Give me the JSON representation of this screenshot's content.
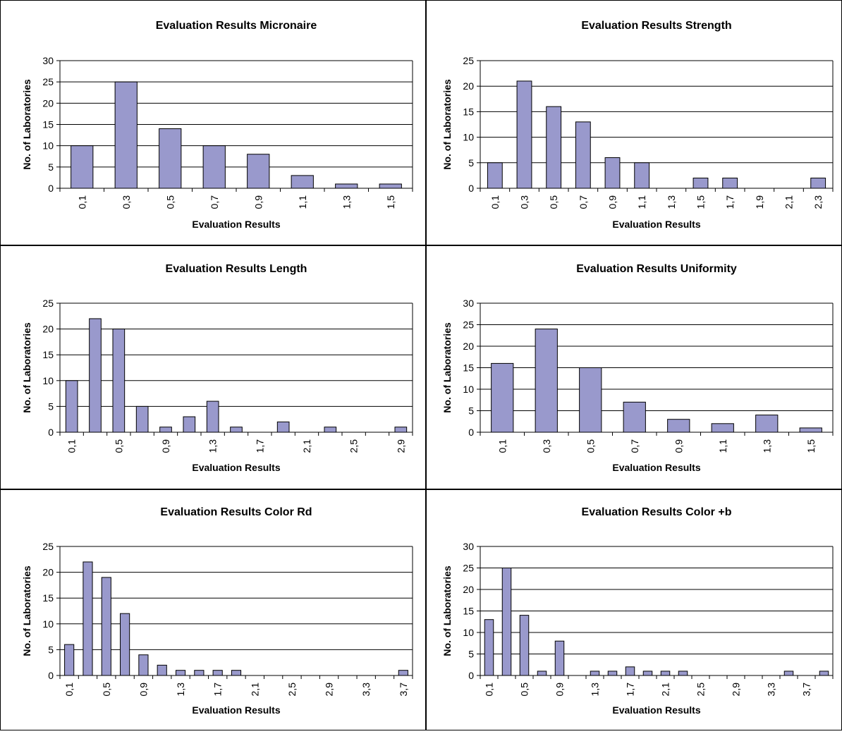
{
  "chart_data": [
    {
      "type": "bar",
      "title": "Evaluation Results Micronaire",
      "xlabel": "Evaluation Results",
      "ylabel": "No. of Laboratories",
      "ylim": [
        0,
        30
      ],
      "yticks": [
        0,
        5,
        10,
        15,
        20,
        25,
        30
      ],
      "grid": true,
      "categories": [
        "0,1",
        "0,3",
        "0,5",
        "0,7",
        "0,9",
        "1,1",
        "1,3",
        "1,5"
      ],
      "values": [
        10,
        25,
        14,
        10,
        8,
        3,
        1,
        1
      ],
      "label_every": 1,
      "colors": {
        "bar": "#9999cc"
      }
    },
    {
      "type": "bar",
      "title": "Evaluation Results Strength",
      "xlabel": "Evaluation Results",
      "ylabel": "No. of Laboratories",
      "ylim": [
        0,
        25
      ],
      "yticks": [
        0,
        5,
        10,
        15,
        20,
        25
      ],
      "grid": true,
      "categories": [
        "0,1",
        "0,3",
        "0,5",
        "0,7",
        "0,9",
        "1,1",
        "1,3",
        "1,5",
        "1,7",
        "1,9",
        "2,1",
        "2,3"
      ],
      "values": [
        5,
        21,
        16,
        13,
        6,
        5,
        0,
        2,
        2,
        0,
        0,
        2
      ],
      "label_every": 1,
      "colors": {
        "bar": "#9999cc"
      }
    },
    {
      "type": "bar",
      "title": "Evaluation Results Length",
      "xlabel": "Evaluation Results",
      "ylabel": "No. of Laboratories",
      "ylim": [
        0,
        25
      ],
      "yticks": [
        0,
        5,
        10,
        15,
        20,
        25
      ],
      "grid": true,
      "categories": [
        "0,1",
        "0,3",
        "0,5",
        "0,7",
        "0,9",
        "1,1",
        "1,3",
        "1,5",
        "1,7",
        "1,9",
        "2,1",
        "2,3",
        "2,5",
        "2,7",
        "2,9"
      ],
      "values": [
        10,
        22,
        20,
        5,
        1,
        3,
        6,
        1,
        0,
        2,
        0,
        1,
        0,
        0,
        1
      ],
      "label_every": 2,
      "colors": {
        "bar": "#9999cc"
      }
    },
    {
      "type": "bar",
      "title": "Evaluation Results Uniformity",
      "xlabel": "Evaluation Results",
      "ylabel": "No. of Laboratories",
      "ylim": [
        0,
        30
      ],
      "yticks": [
        0,
        5,
        10,
        15,
        20,
        25,
        30
      ],
      "grid": true,
      "categories": [
        "0,1",
        "0,3",
        "0,5",
        "0,7",
        "0,9",
        "1,1",
        "1,3",
        "1,5"
      ],
      "values": [
        16,
        24,
        15,
        7,
        3,
        2,
        4,
        1
      ],
      "label_every": 1,
      "colors": {
        "bar": "#9999cc"
      }
    },
    {
      "type": "bar",
      "title": "Evaluation Results Color Rd",
      "xlabel": "Evaluation Results",
      "ylabel": "No. of Laboratories",
      "ylim": [
        0,
        25
      ],
      "yticks": [
        0,
        5,
        10,
        15,
        20,
        25
      ],
      "grid": true,
      "categories": [
        "0,1",
        "0,3",
        "0,5",
        "0,7",
        "0,9",
        "1,1",
        "1,3",
        "1,5",
        "1,7",
        "1,9",
        "2,1",
        "2,3",
        "2,5",
        "2,7",
        "2,9",
        "3,1",
        "3,3",
        "3,5",
        "3,7"
      ],
      "values": [
        6,
        22,
        19,
        12,
        4,
        2,
        1,
        1,
        1,
        1,
        0,
        0,
        0,
        0,
        0,
        0,
        0,
        0,
        1
      ],
      "label_every": 2,
      "colors": {
        "bar": "#9999cc"
      }
    },
    {
      "type": "bar",
      "title": "Evaluation Results Color +b",
      "xlabel": "Evaluation Results",
      "ylabel": "No. of Laboratories",
      "ylim": [
        0,
        30
      ],
      "yticks": [
        0,
        5,
        10,
        15,
        20,
        25,
        30
      ],
      "grid": true,
      "categories": [
        "0,1",
        "0,3",
        "0,5",
        "0,7",
        "0,9",
        "1,1",
        "1,3",
        "1,5",
        "1,7",
        "1,9",
        "2,1",
        "2,3",
        "2,5",
        "2,7",
        "2,9",
        "3,1",
        "3,3",
        "3,5",
        "3,7",
        "3,9"
      ],
      "values": [
        13,
        25,
        14,
        1,
        8,
        0,
        1,
        1,
        2,
        1,
        1,
        1,
        0,
        0,
        0,
        0,
        0,
        1,
        0,
        1
      ],
      "label_every": 2,
      "colors": {
        "bar": "#9999cc"
      }
    }
  ]
}
